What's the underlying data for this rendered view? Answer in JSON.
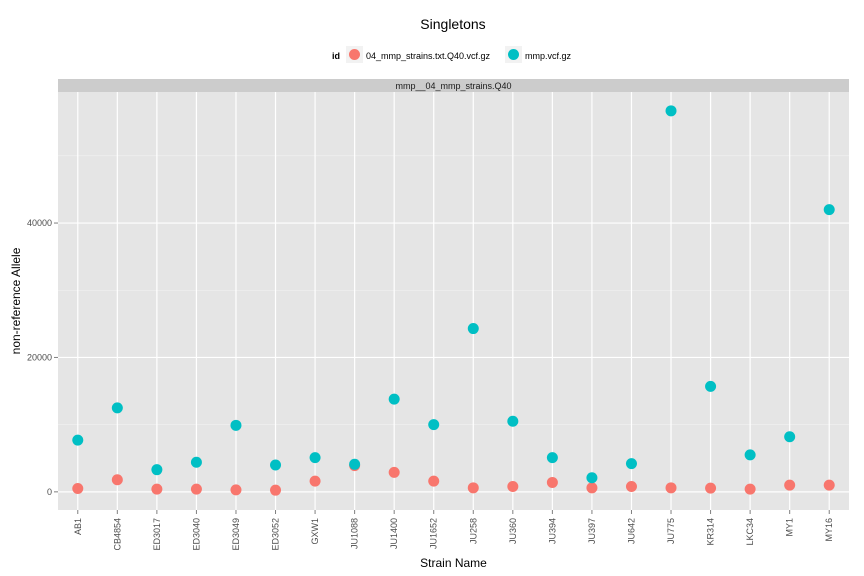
{
  "chart_data": {
    "type": "scatter",
    "title": "Singletons",
    "xlabel": "Strain Name",
    "ylabel": "non-reference Allele",
    "facet_label": "mmp__04_mmp_strains.Q40",
    "legend": {
      "title": "id",
      "placement": "top"
    },
    "categories": [
      "AB1",
      "CB4854",
      "ED3017",
      "ED3040",
      "ED3049",
      "ED3052",
      "GXW1",
      "JU1088",
      "JU1400",
      "JU1652",
      "JU258",
      "JU360",
      "JU394",
      "JU397",
      "JU642",
      "JU775",
      "KR314",
      "LKC34",
      "MY1",
      "MY16"
    ],
    "series": [
      {
        "name": "04_mmp_strains.txt.Q40.vcf.gz",
        "color": "#f8766d",
        "values": [
          500,
          1800,
          400,
          400,
          300,
          250,
          1600,
          3900,
          2900,
          1600,
          600,
          800,
          1400,
          600,
          800,
          600,
          550,
          400,
          1000,
          1000
        ]
      },
      {
        "name": "mmp.vcf.gz",
        "color": "#00bfc4",
        "values": [
          7700,
          12500,
          3300,
          4400,
          9900,
          4000,
          5100,
          4100,
          13800,
          10000,
          24300,
          10500,
          5100,
          2100,
          4200,
          56700,
          15700,
          5500,
          8200,
          42000
        ]
      }
    ],
    "ylim": [
      -2700,
      59500
    ],
    "yticks": [
      0,
      20000,
      40000
    ],
    "grid": true
  }
}
